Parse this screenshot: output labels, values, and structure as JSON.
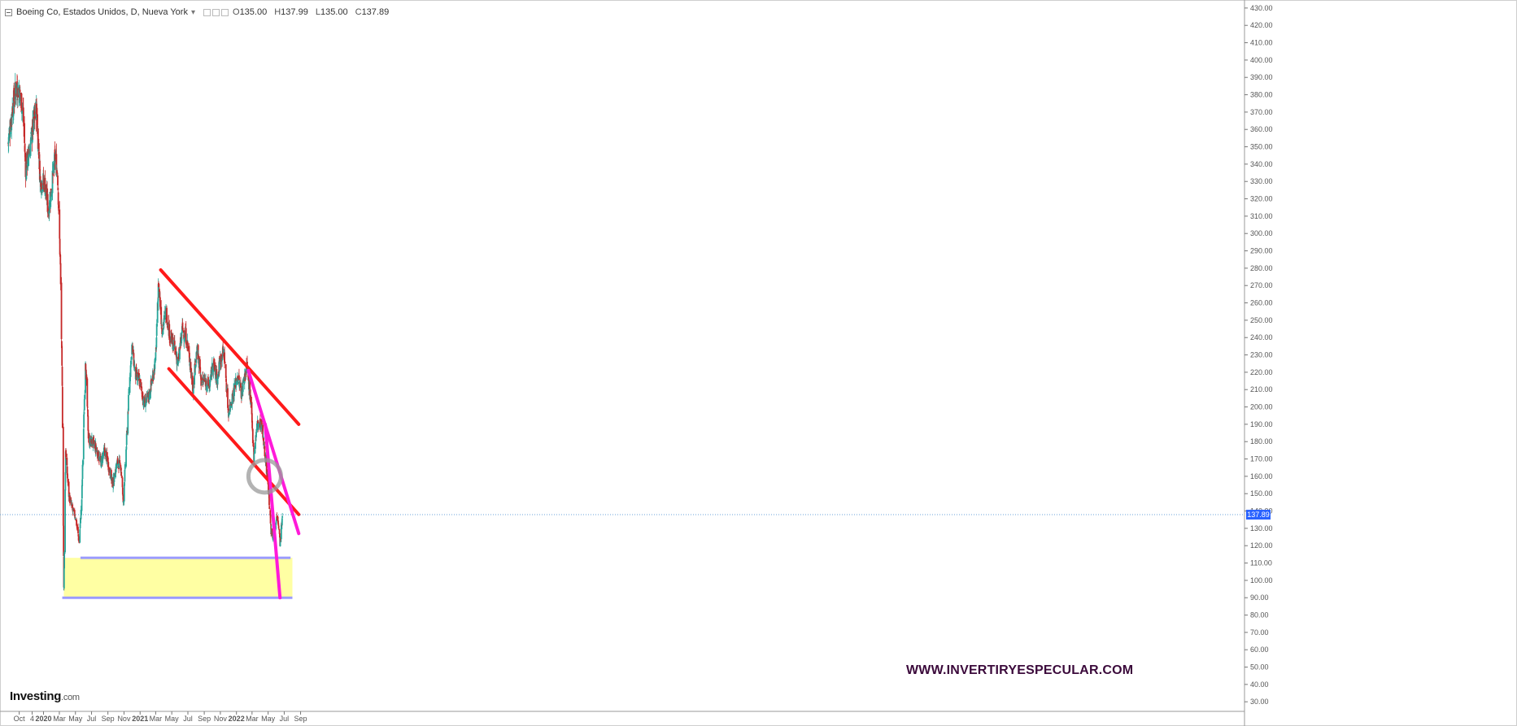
{
  "header": {
    "title": "Boeing Co, Estados Unidos, D, Nueva York",
    "ohlc": {
      "o_label": "O",
      "o": "135.00",
      "h_label": "H",
      "h": "137.99",
      "l_label": "L",
      "l": "135.00",
      "c_label": "C",
      "c": "137.89"
    }
  },
  "logo": {
    "text": "Investing",
    "suffix": ".com"
  },
  "watermark": "WWW.INVERTIRYESPECULAR.COM",
  "colors": {
    "up": "#26a69a",
    "down": "#c62828",
    "red_line": "#ff1a1a",
    "magenta_line": "#ff1ad9",
    "support_line": "#9a9aff",
    "zone_fill": "#ffff99",
    "price_tag": "#2962ff",
    "axis": "#555555"
  },
  "chart_data": {
    "type": "candlestick",
    "title": "Boeing Co, Estados Unidos, D, Nueva York",
    "xlabel": "",
    "ylabel": "",
    "ylim": [
      24,
      434
    ],
    "y_ticks": [
      30,
      40,
      50,
      60,
      70,
      80,
      90,
      100,
      110,
      120,
      130,
      140,
      150,
      160,
      170,
      180,
      190,
      200,
      210,
      220,
      230,
      240,
      250,
      260,
      270,
      280,
      290,
      300,
      310,
      320,
      330,
      340,
      350,
      360,
      370,
      380,
      390,
      400,
      410,
      420,
      430
    ],
    "x_tick_labels": [
      "Oct",
      "4",
      "2020",
      "Mar",
      "May",
      "Jul",
      "Sep",
      "Nov",
      "2021",
      "Mar",
      "May",
      "Jul",
      "Sep",
      "Nov",
      "2022",
      "Mar",
      "May",
      "Jul",
      "Sep"
    ],
    "x_ticks_ym": [
      [
        2019,
        10
      ],
      [
        2019,
        11.6
      ],
      [
        2020,
        1
      ],
      [
        2020,
        3
      ],
      [
        2020,
        5
      ],
      [
        2020,
        7
      ],
      [
        2020,
        9
      ],
      [
        2020,
        11
      ],
      [
        2021,
        1
      ],
      [
        2021,
        3
      ],
      [
        2021,
        5
      ],
      [
        2021,
        7
      ],
      [
        2021,
        9
      ],
      [
        2021,
        11
      ],
      [
        2022,
        1
      ],
      [
        2022,
        3
      ],
      [
        2022,
        5
      ],
      [
        2022,
        7
      ],
      [
        2022,
        9
      ]
    ],
    "x_start": "2019-08-20",
    "last_price": 137.89,
    "last_price_label": "137.89",
    "price_series": [
      [
        "2019-08-20",
        352
      ],
      [
        "2019-09-05",
        372
      ],
      [
        "2019-09-20",
        385
      ],
      [
        "2019-10-01",
        382
      ],
      [
        "2019-10-15",
        372
      ],
      [
        "2019-10-25",
        338
      ],
      [
        "2019-11-10",
        348
      ],
      [
        "2019-11-25",
        365
      ],
      [
        "2019-12-05",
        372
      ],
      [
        "2019-12-20",
        330
      ],
      [
        "2020-01-05",
        330
      ],
      [
        "2020-01-20",
        313
      ],
      [
        "2020-02-01",
        327
      ],
      [
        "2020-02-15",
        345
      ],
      [
        "2020-02-24",
        332
      ],
      [
        "2020-03-05",
        280
      ],
      [
        "2020-03-12",
        210
      ],
      [
        "2020-03-18",
        95
      ],
      [
        "2020-03-25",
        175
      ],
      [
        "2020-04-05",
        150
      ],
      [
        "2020-04-20",
        140
      ],
      [
        "2020-05-01",
        137
      ],
      [
        "2020-05-15",
        122
      ],
      [
        "2020-05-25",
        147
      ],
      [
        "2020-06-08",
        228
      ],
      [
        "2020-06-20",
        180
      ],
      [
        "2020-07-05",
        180
      ],
      [
        "2020-07-20",
        175
      ],
      [
        "2020-08-05",
        168
      ],
      [
        "2020-08-20",
        175
      ],
      [
        "2020-09-05",
        165
      ],
      [
        "2020-09-20",
        155
      ],
      [
        "2020-10-05",
        168
      ],
      [
        "2020-10-20",
        166
      ],
      [
        "2020-10-29",
        145
      ],
      [
        "2020-11-09",
        175
      ],
      [
        "2020-11-20",
        210
      ],
      [
        "2020-12-01",
        235
      ],
      [
        "2020-12-15",
        218
      ],
      [
        "2021-01-01",
        214
      ],
      [
        "2021-01-15",
        202
      ],
      [
        "2021-02-01",
        205
      ],
      [
        "2021-02-15",
        215
      ],
      [
        "2021-03-01",
        228
      ],
      [
        "2021-03-12",
        272
      ],
      [
        "2021-03-25",
        245
      ],
      [
        "2021-04-10",
        255
      ],
      [
        "2021-04-25",
        240
      ],
      [
        "2021-05-10",
        235
      ],
      [
        "2021-05-25",
        225
      ],
      [
        "2021-06-10",
        245
      ],
      [
        "2021-06-25",
        240
      ],
      [
        "2021-07-10",
        225
      ],
      [
        "2021-07-20",
        210
      ],
      [
        "2021-08-05",
        235
      ],
      [
        "2021-08-20",
        215
      ],
      [
        "2021-09-05",
        215
      ],
      [
        "2021-09-20",
        212
      ],
      [
        "2021-10-05",
        225
      ],
      [
        "2021-10-20",
        215
      ],
      [
        "2021-11-01",
        228
      ],
      [
        "2021-11-15",
        232
      ],
      [
        "2021-12-01",
        197
      ],
      [
        "2021-12-15",
        205
      ],
      [
        "2022-01-05",
        218
      ],
      [
        "2022-01-20",
        208
      ],
      [
        "2022-02-01",
        218
      ],
      [
        "2022-02-10",
        225
      ],
      [
        "2022-02-25",
        200
      ],
      [
        "2022-03-08",
        172
      ],
      [
        "2022-03-20",
        190
      ],
      [
        "2022-04-05",
        190
      ],
      [
        "2022-04-20",
        172
      ],
      [
        "2022-05-01",
        155
      ],
      [
        "2022-05-12",
        128
      ],
      [
        "2022-05-25",
        125
      ],
      [
        "2022-06-05",
        140
      ],
      [
        "2022-06-15",
        122
      ],
      [
        "2022-06-25",
        137.89
      ]
    ],
    "annotations": {
      "red_channel_upper": [
        [
          "2021-03-20",
          279
        ],
        [
          "2022-08-25",
          190
        ]
      ],
      "red_channel_lower": [
        [
          "2021-04-20",
          222
        ],
        [
          "2022-08-25",
          138
        ]
      ],
      "magenta_line_1": [
        [
          "2022-02-15",
          221
        ],
        [
          "2022-08-25",
          127
        ]
      ],
      "magenta_line_2": [
        [
          "2022-04-20",
          190
        ],
        [
          "2022-06-15",
          90
        ]
      ],
      "support_upper": {
        "y": 113,
        "x": [
          "2020-05-20",
          "2022-07-25"
        ]
      },
      "support_lower": {
        "y": 90,
        "x": [
          "2020-03-12",
          "2022-08-01"
        ]
      },
      "yellow_zone": {
        "y": [
          90,
          113
        ],
        "x": [
          "2020-03-18",
          "2022-08-01"
        ]
      },
      "circle_marker": {
        "x": "2022-04-18",
        "y": 160
      }
    }
  }
}
